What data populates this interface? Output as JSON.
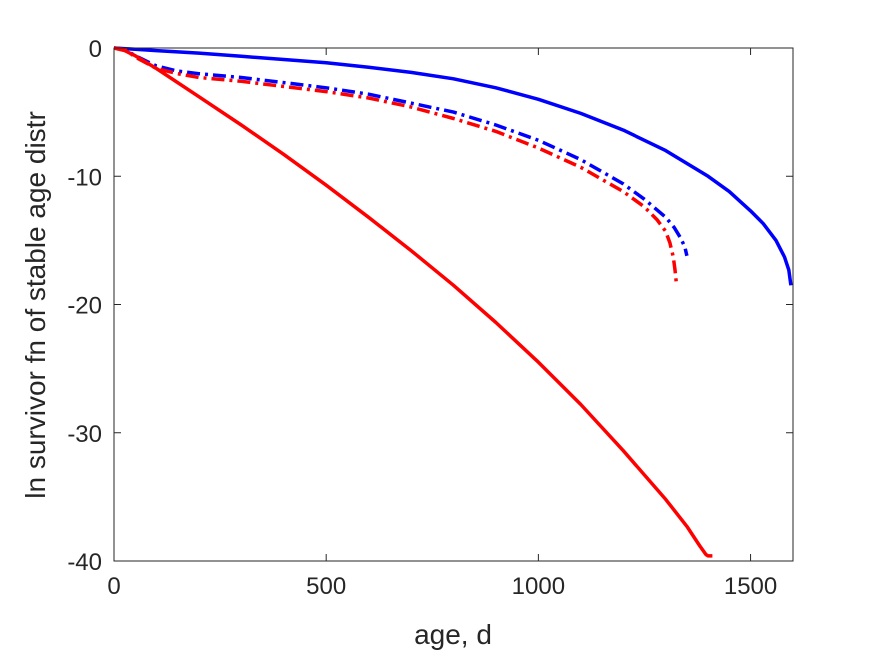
{
  "chart_data": {
    "type": "line",
    "title": "",
    "xlabel": "age, d",
    "ylabel": "ln survivor fn of stable age distr",
    "xlim": [
      0,
      1600
    ],
    "ylim": [
      -40,
      0
    ],
    "xticks": [
      0,
      500,
      1000,
      1500
    ],
    "yticks": [
      0,
      -10,
      -20,
      -30,
      -40
    ],
    "grid": false,
    "box": true,
    "series": [
      {
        "color": "#0000ff",
        "linestyle": "solid",
        "x": [
          0,
          50,
          100,
          200,
          300,
          400,
          500,
          600,
          700,
          800,
          900,
          1000,
          1100,
          1200,
          1300,
          1400,
          1450,
          1500,
          1530,
          1560,
          1580,
          1590,
          1595
        ],
        "y": [
          0,
          -0.1,
          -0.2,
          -0.4,
          -0.65,
          -0.9,
          -1.15,
          -1.5,
          -1.9,
          -2.4,
          -3.1,
          -4.0,
          -5.1,
          -6.4,
          -8.0,
          -10.0,
          -11.2,
          -12.7,
          -13.7,
          -15.0,
          -16.3,
          -17.3,
          -18.5
        ]
      },
      {
        "color": "#0000ff",
        "linestyle": "dashdot",
        "x": [
          0,
          25,
          50,
          100,
          150,
          200,
          300,
          400,
          500,
          600,
          700,
          800,
          900,
          1000,
          1100,
          1200,
          1250,
          1300,
          1320,
          1335,
          1345,
          1350
        ],
        "y": [
          0,
          -0.1,
          -0.6,
          -1.4,
          -1.8,
          -2.0,
          -2.3,
          -2.7,
          -3.1,
          -3.6,
          -4.3,
          -5.0,
          -6.0,
          -7.2,
          -8.7,
          -10.6,
          -11.8,
          -13.2,
          -14.0,
          -14.8,
          -15.5,
          -16.2
        ]
      },
      {
        "color": "#ff0000",
        "linestyle": "dashdot",
        "x": [
          0,
          25,
          50,
          100,
          150,
          200,
          300,
          400,
          500,
          600,
          700,
          800,
          900,
          1000,
          1100,
          1200,
          1250,
          1280,
          1300,
          1310,
          1318,
          1322,
          1325
        ],
        "y": [
          0,
          -0.1,
          -0.7,
          -1.6,
          -2.0,
          -2.3,
          -2.6,
          -3.0,
          -3.4,
          -3.9,
          -4.6,
          -5.5,
          -6.5,
          -7.8,
          -9.3,
          -11.2,
          -12.4,
          -13.4,
          -14.3,
          -15.2,
          -16.3,
          -17.3,
          -18.3
        ]
      },
      {
        "color": "#ff0000",
        "linestyle": "solid",
        "x": [
          0,
          25,
          50,
          100,
          200,
          300,
          400,
          500,
          600,
          700,
          800,
          900,
          1000,
          1100,
          1200,
          1300,
          1350,
          1380,
          1395,
          1400,
          1410
        ],
        "y": [
          0,
          -0.2,
          -0.6,
          -1.6,
          -3.8,
          -6.0,
          -8.3,
          -10.7,
          -13.2,
          -15.8,
          -18.5,
          -21.4,
          -24.5,
          -27.8,
          -31.4,
          -35.2,
          -37.3,
          -38.8,
          -39.5,
          -39.6,
          -39.6
        ]
      }
    ]
  }
}
